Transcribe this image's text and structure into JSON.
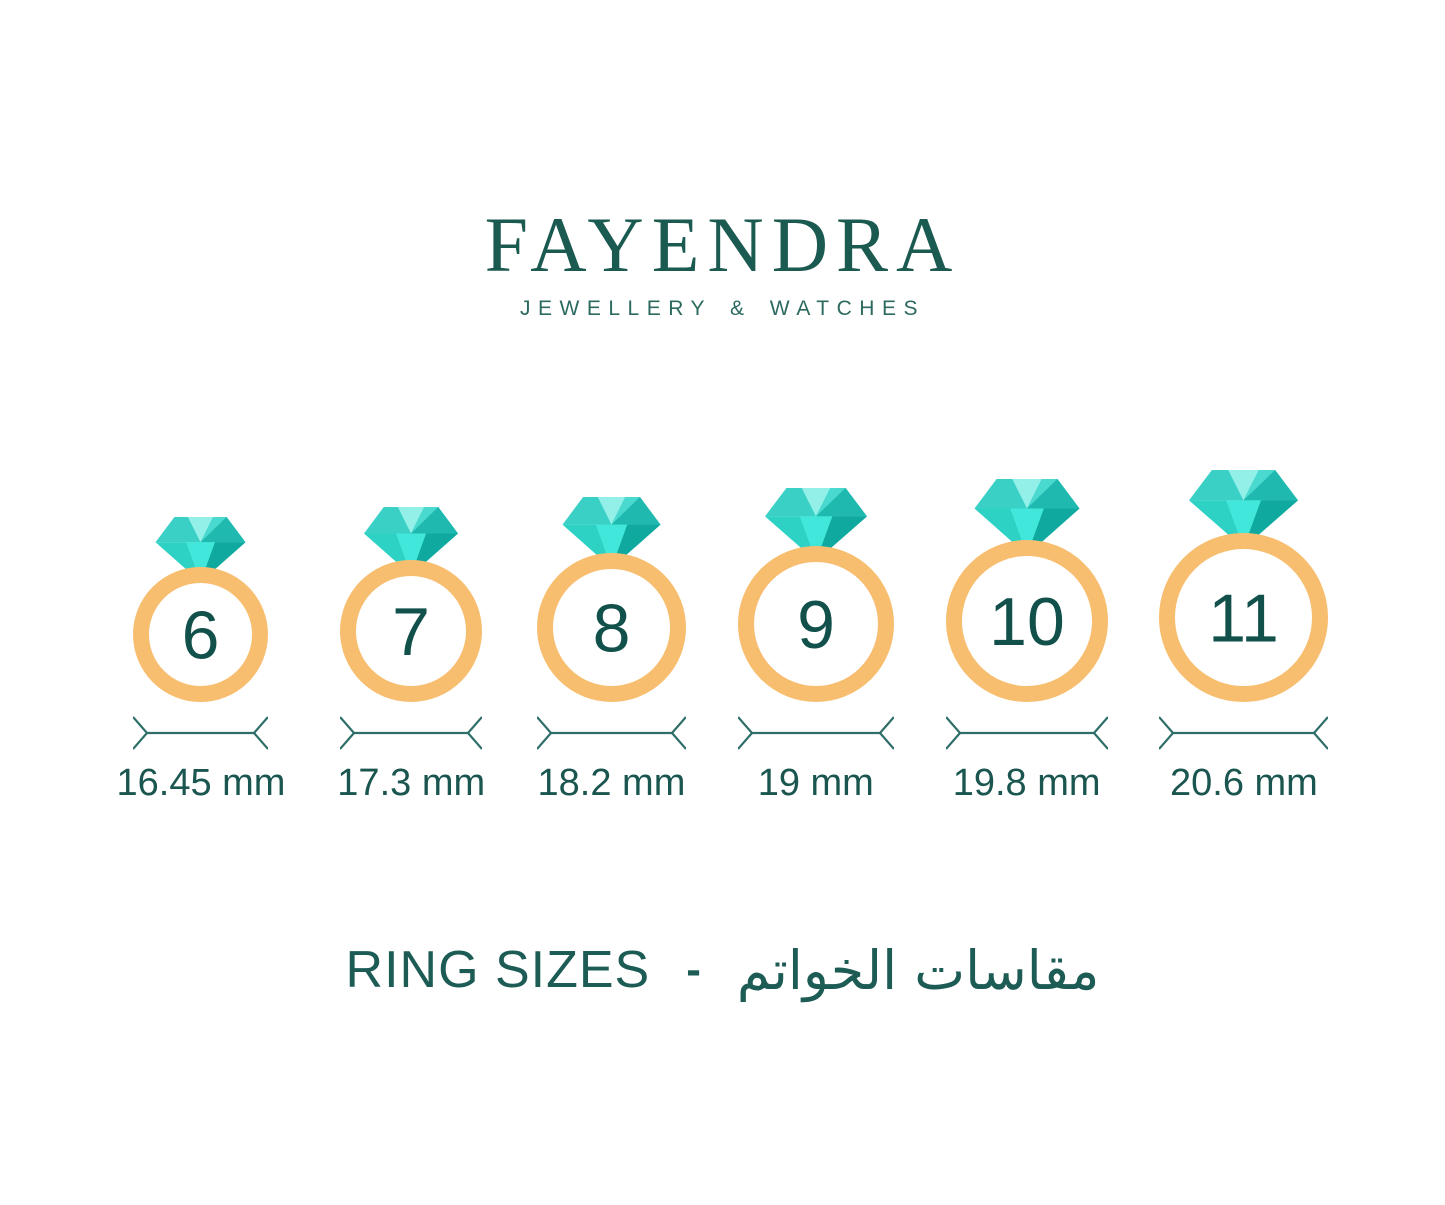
{
  "brand": {
    "name": "FAYENDRA",
    "tagline": "JEWELLERY & WATCHES"
  },
  "rings": [
    {
      "size": "6",
      "diameter_mm": 16.45,
      "label": "16.45 mm"
    },
    {
      "size": "7",
      "diameter_mm": 17.3,
      "label": "17.3 mm"
    },
    {
      "size": "8",
      "diameter_mm": 18.2,
      "label": "18.2 mm"
    },
    {
      "size": "9",
      "diameter_mm": 19,
      "label": "19 mm"
    },
    {
      "size": "10",
      "diameter_mm": 19.8,
      "label": "19.8 mm"
    },
    {
      "size": "11",
      "diameter_mm": 20.6,
      "label": "20.6 mm"
    }
  ],
  "footer": {
    "title_en": "RING SIZES",
    "separator": "-",
    "title_ar": "مقاسات الخواتم"
  },
  "colors": {
    "brand_green": "#1B5A50",
    "band_orange": "#F8BE70",
    "number_teal": "#12514B",
    "dimension_teal": "#2E6E68",
    "gem": {
      "crown_base": "#3BD0C6",
      "crown_center": "#93F0E9",
      "crown_right": "#49D9CF",
      "crown_edge": "#1FB9AF",
      "pavilion_base": "#2ED2C5",
      "pavilion_center": "#40E7DA",
      "pavilion_right": "#10A99F"
    }
  }
}
